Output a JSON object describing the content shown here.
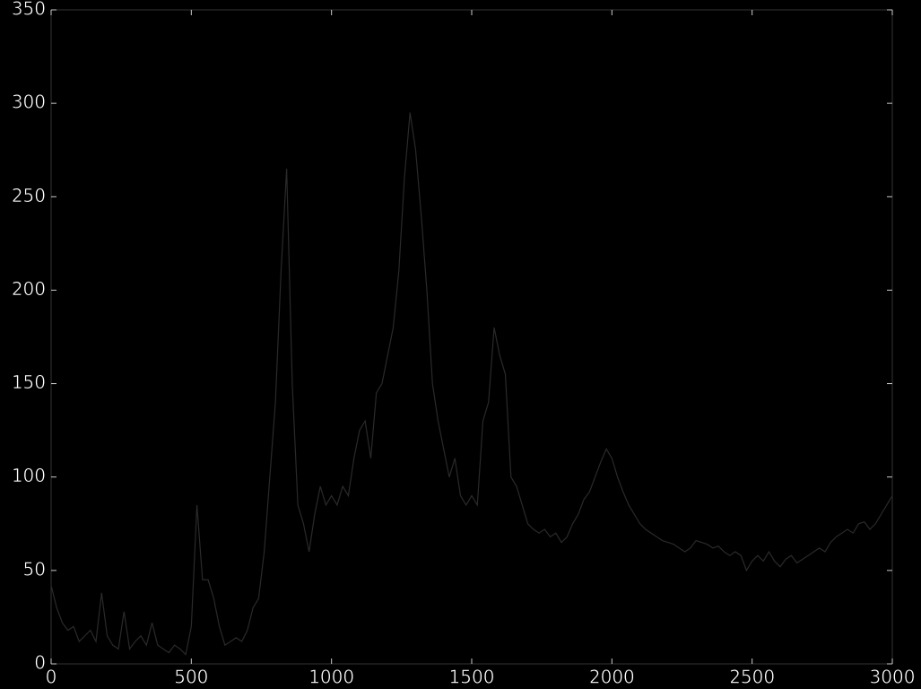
{
  "chart_data": {
    "type": "line",
    "x": [
      0,
      20,
      40,
      60,
      80,
      100,
      120,
      140,
      160,
      180,
      200,
      220,
      240,
      260,
      280,
      300,
      320,
      340,
      360,
      380,
      400,
      420,
      440,
      460,
      480,
      500,
      520,
      540,
      560,
      580,
      600,
      620,
      640,
      660,
      680,
      700,
      720,
      740,
      760,
      780,
      800,
      820,
      840,
      860,
      880,
      900,
      920,
      940,
      960,
      980,
      1000,
      1020,
      1040,
      1060,
      1080,
      1100,
      1120,
      1140,
      1160,
      1180,
      1200,
      1220,
      1240,
      1260,
      1280,
      1300,
      1320,
      1340,
      1360,
      1380,
      1400,
      1420,
      1440,
      1460,
      1480,
      1500,
      1520,
      1540,
      1560,
      1580,
      1600,
      1620,
      1640,
      1660,
      1680,
      1700,
      1720,
      1740,
      1760,
      1780,
      1800,
      1820,
      1840,
      1860,
      1880,
      1900,
      1920,
      1940,
      1960,
      1980,
      2000,
      2020,
      2040,
      2060,
      2080,
      2100,
      2120,
      2140,
      2160,
      2180,
      2200,
      2220,
      2240,
      2260,
      2280,
      2300,
      2320,
      2340,
      2360,
      2380,
      2400,
      2420,
      2440,
      2460,
      2480,
      2500,
      2520,
      2540,
      2560,
      2580,
      2600,
      2620,
      2640,
      2660,
      2680,
      2700,
      2720,
      2740,
      2760,
      2780,
      2800,
      2820,
      2840,
      2860,
      2880,
      2900,
      2920,
      2940,
      2960,
      2980,
      3000
    ],
    "values": [
      42,
      30,
      22,
      18,
      20,
      12,
      15,
      18,
      12,
      38,
      15,
      10,
      8,
      28,
      8,
      12,
      15,
      10,
      22,
      10,
      8,
      6,
      10,
      8,
      5,
      20,
      85,
      45,
      45,
      35,
      20,
      10,
      12,
      14,
      12,
      18,
      30,
      35,
      60,
      100,
      140,
      210,
      265,
      150,
      85,
      75,
      60,
      80,
      95,
      85,
      90,
      85,
      95,
      90,
      110,
      125,
      130,
      110,
      145,
      150,
      165,
      180,
      210,
      260,
      295,
      275,
      240,
      200,
      150,
      130,
      115,
      100,
      110,
      90,
      85,
      90,
      85,
      130,
      140,
      180,
      165,
      155,
      100,
      95,
      85,
      75,
      72,
      70,
      72,
      68,
      70,
      65,
      68,
      75,
      80,
      88,
      92,
      100,
      108,
      115,
      110,
      100,
      92,
      85,
      80,
      75,
      72,
      70,
      68,
      66,
      65,
      64,
      62,
      60,
      62,
      66,
      65,
      64,
      62,
      63,
      60,
      58,
      60,
      58,
      50,
      55,
      58,
      55,
      60,
      55,
      52,
      56,
      58,
      54,
      56,
      58,
      60,
      62,
      60,
      65,
      68,
      70,
      72,
      70,
      75,
      76,
      72,
      75,
      80,
      85,
      90
    ],
    "color": "#2a2a2a",
    "xlim": [
      0,
      3000
    ],
    "xticks": [
      0,
      500,
      1000,
      1500,
      2000,
      2500,
      3000
    ],
    "ylim": [
      0,
      350
    ],
    "yticks": [
      0,
      50,
      100,
      150,
      200,
      250,
      300,
      350
    ]
  }
}
